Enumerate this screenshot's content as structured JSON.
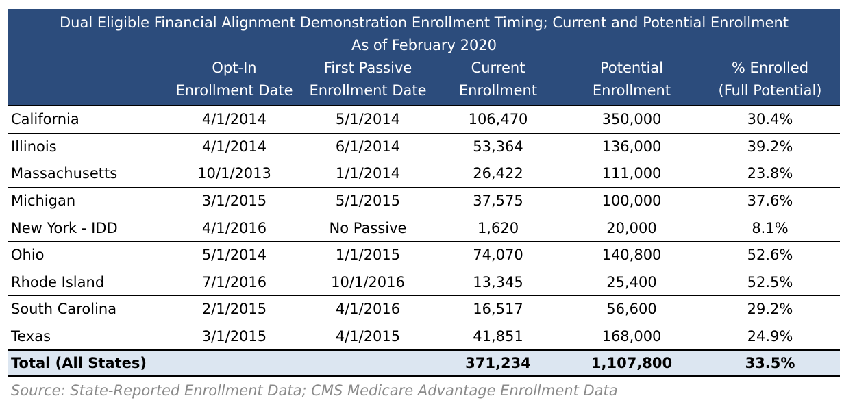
{
  "title_line1": "Dual Eligible Financial Alignment Demonstration Enrollment Timing; Current and Potential Enrollment",
  "title_line2": "As of February 2020",
  "headers": [
    {
      "l1": "",
      "l2": ""
    },
    {
      "l1": "Opt-In",
      "l2": "Enrollment Date"
    },
    {
      "l1": "First Passive",
      "l2": "Enrollment Date"
    },
    {
      "l1": "Current",
      "l2": "Enrollment"
    },
    {
      "l1": "Potential",
      "l2": "Enrollment"
    },
    {
      "l1": "% Enrolled",
      "l2": "(Full Potential)"
    }
  ],
  "rows": [
    [
      "California",
      "4/1/2014",
      "5/1/2014",
      "106,470",
      "350,000",
      "30.4%"
    ],
    [
      "Illinois",
      "4/1/2014",
      "6/1/2014",
      "53,364",
      "136,000",
      "39.2%"
    ],
    [
      "Massachusetts",
      "10/1/2013",
      "1/1/2014",
      "26,422",
      "111,000",
      "23.8%"
    ],
    [
      "Michigan",
      "3/1/2015",
      "5/1/2015",
      "37,575",
      "100,000",
      "37.6%"
    ],
    [
      "New York - IDD",
      "4/1/2016",
      "No Passive",
      "1,620",
      "20,000",
      "8.1%"
    ],
    [
      "Ohio",
      "5/1/2014",
      "1/1/2015",
      "74,070",
      "140,800",
      "52.6%"
    ],
    [
      "Rhode Island",
      "7/1/2016",
      "10/1/2016",
      "13,345",
      "25,400",
      "52.5%"
    ],
    [
      "South Carolina",
      "2/1/2015",
      "4/1/2016",
      "16,517",
      "56,600",
      "29.2%"
    ],
    [
      "Texas",
      "3/1/2015",
      "4/1/2015",
      "41,851",
      "168,000",
      "24.9%"
    ]
  ],
  "total": [
    "Total (All States)",
    "",
    "",
    "371,234",
    "1,107,800",
    "33.5%"
  ],
  "source": "Source: State-Reported Enrollment Data; CMS Medicare Advantage Enrollment Data",
  "colors": {
    "header_bg": "#2c4c7c",
    "total_bg": "#dce6f1",
    "source_text": "#8a8a8a"
  }
}
